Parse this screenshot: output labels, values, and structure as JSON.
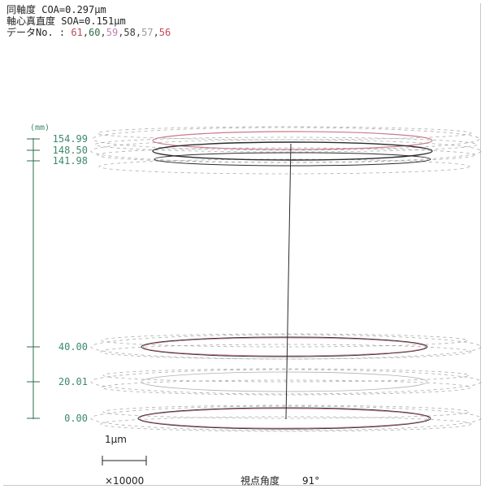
{
  "header": {
    "coaxiality": "同軸度 COA=0.297μm",
    "axis_straightness": "軸心真直度 SOA=0.151μm",
    "data_no_label": "データNo. :",
    "data_numbers": [
      {
        "text": "61",
        "color": "#c04a5a"
      },
      {
        "text": "60",
        "color": "#2f6b4a"
      },
      {
        "text": "59",
        "color": "#c07fb0"
      },
      {
        "text": "58",
        "color": "#3b3b3b"
      },
      {
        "text": "57",
        "color": "#9a9a9a"
      },
      {
        "text": "56",
        "color": "#c04a5a"
      }
    ]
  },
  "axis": {
    "unit": "(mm)",
    "label_color": "#3d8a6a",
    "levels": [
      {
        "label": "154.99",
        "value": 154.99
      },
      {
        "label": "148.50",
        "value": 148.5
      },
      {
        "label": "141.98",
        "value": 141.98
      },
      {
        "label": "40.00",
        "value": 40.0
      },
      {
        "label": "20.01",
        "value": 20.01
      },
      {
        "label": "0.00",
        "value": 0.0
      }
    ]
  },
  "scale": {
    "label": "1μm",
    "magnification": "×10000"
  },
  "view_angle": {
    "label": "視点角度",
    "value": "91°"
  },
  "colors": {
    "pink": "#c97a8a",
    "dark": "#2b2b2b",
    "dashed": "#8a8a8a"
  }
}
